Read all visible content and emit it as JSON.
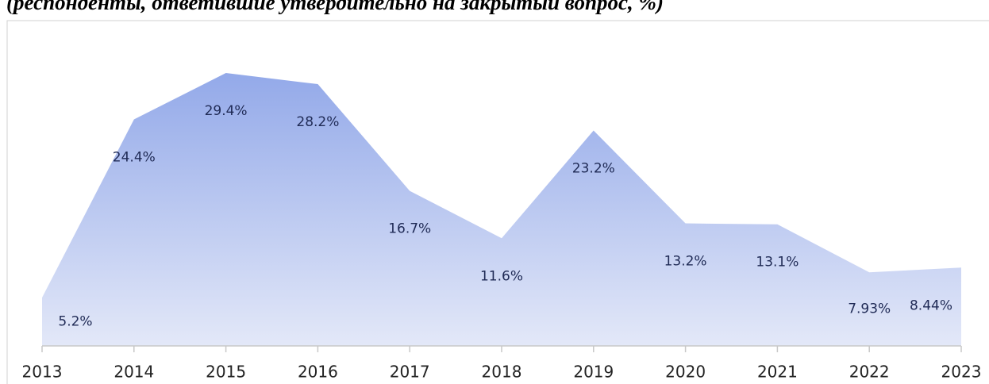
{
  "chart_data": {
    "type": "area",
    "title": "(респонденты, ответившие утвердительно на закрытый вопрос, %)",
    "categories": [
      "2013",
      "2014",
      "2015",
      "2016",
      "2017",
      "2018",
      "2019",
      "2020",
      "2021",
      "2022",
      "2023"
    ],
    "values": [
      5.2,
      24.4,
      29.4,
      28.2,
      16.7,
      11.6,
      23.2,
      13.2,
      13.1,
      7.93,
      8.44
    ],
    "value_labels": [
      "5.2%",
      "24.4%",
      "29.4%",
      "28.2%",
      "16.7%",
      "11.6%",
      "23.2%",
      "13.2%",
      "13.1%",
      "7.93%",
      "8.44%"
    ],
    "color": "#93a9e9"
  }
}
